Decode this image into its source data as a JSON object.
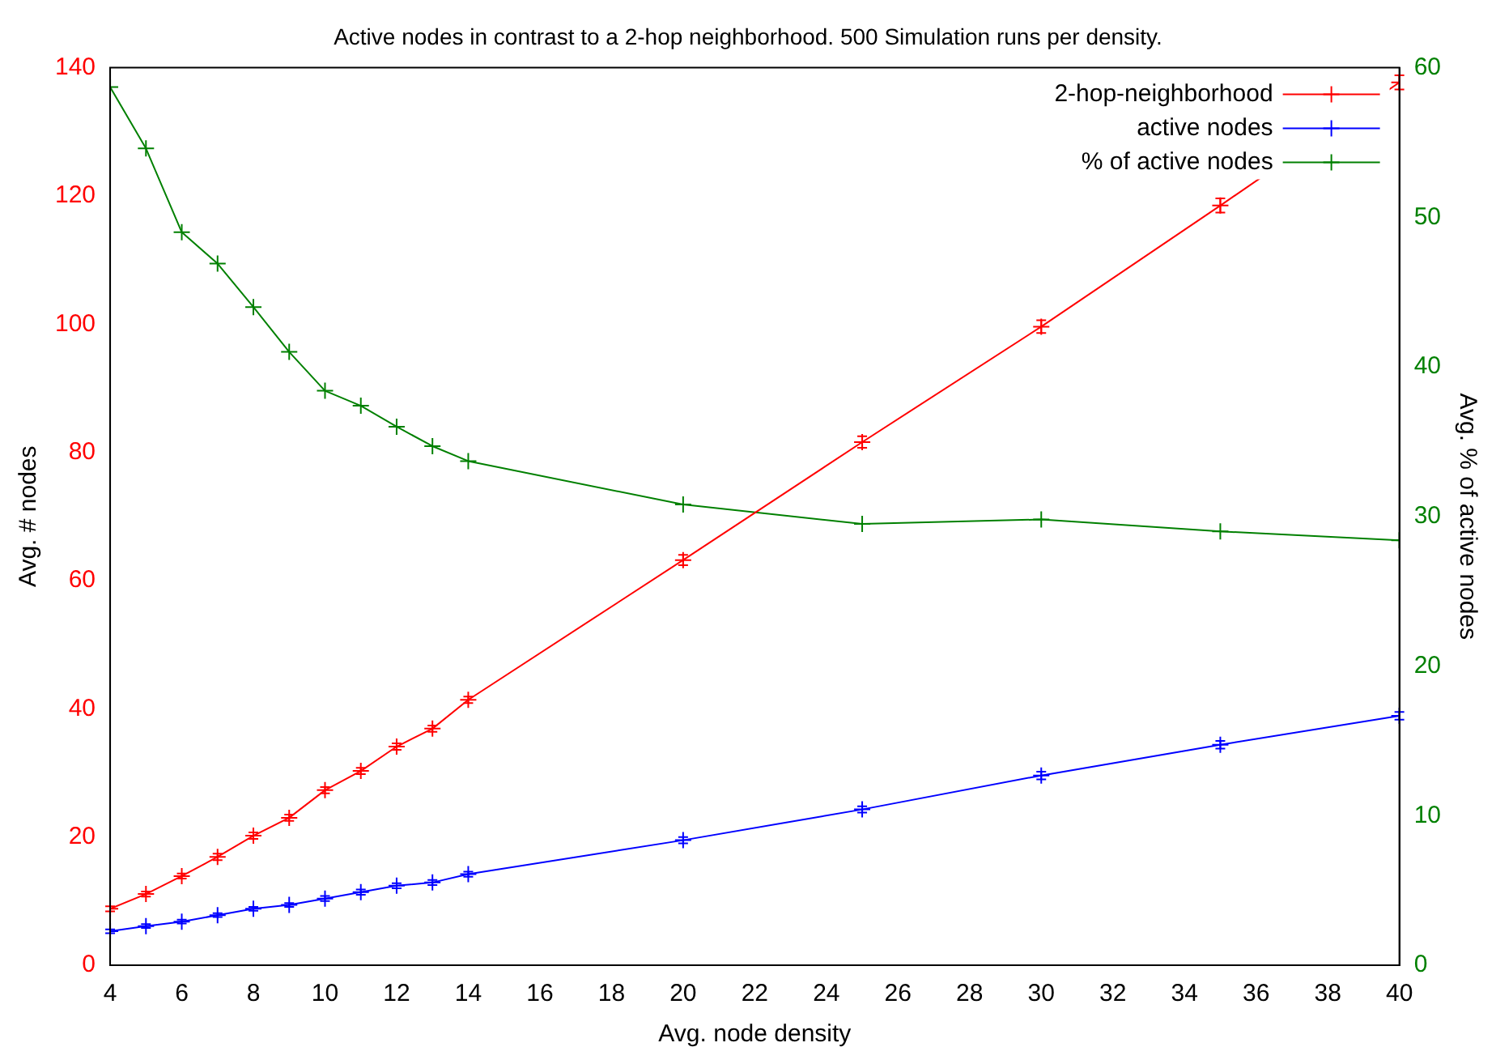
{
  "chart_data": {
    "type": "line",
    "title": "Active nodes in contrast to a 2-hop neighborhood. 500 Simulation runs per density.",
    "xlabel": "Avg. node density",
    "ylabel": "Avg. # nodes",
    "y2label": "Avg. % of active nodes",
    "x": [
      4,
      5,
      6,
      7,
      8,
      9,
      10,
      11,
      12,
      13,
      14,
      20,
      25,
      30,
      35,
      40
    ],
    "series": [
      {
        "name": "2-hop-neighborhood",
        "color": "#ff0000",
        "values": [
          8.8,
          11.1,
          13.9,
          16.9,
          20.2,
          23,
          27.3,
          30.3,
          34.1,
          36.9,
          41.4,
          63.2,
          81.6,
          99.6,
          118.5,
          137.7
        ],
        "errors": [
          0.4,
          0.4,
          0.4,
          0.5,
          0.5,
          0.5,
          0.5,
          0.5,
          0.5,
          0.5,
          0.5,
          0.8,
          0.9,
          1,
          1.1,
          1.1
        ]
      },
      {
        "name": "active nodes",
        "color": "#0000ff",
        "values": [
          5.3,
          6.1,
          6.8,
          7.8,
          8.8,
          9.4,
          10.4,
          11.4,
          12.4,
          12.9,
          14.2,
          19.5,
          24.3,
          29.6,
          34.4,
          38.9
        ],
        "errors": [
          0.3,
          0.3,
          0.3,
          0.3,
          0.3,
          0.3,
          0.4,
          0.4,
          0.4,
          0.4,
          0.4,
          0.5,
          0.5,
          0.6,
          0.6,
          0.6
        ]
      },
      {
        "name": "% of active nodes",
        "color": "#008000",
        "axis": "y2",
        "values": [
          58.7,
          54.6,
          49,
          46.9,
          44,
          41,
          38.4,
          37.4,
          36,
          34.7,
          33.7,
          30.8,
          29.5,
          29.8,
          29,
          28.4
        ]
      }
    ],
    "xlim": [
      4,
      40
    ],
    "xticks": [
      4,
      6,
      8,
      10,
      12,
      14,
      16,
      18,
      20,
      22,
      24,
      26,
      28,
      30,
      32,
      34,
      36,
      38,
      40
    ],
    "ylim": [
      0,
      140
    ],
    "yticks": [
      0,
      20,
      40,
      60,
      80,
      100,
      120,
      140
    ],
    "y2lim": [
      0,
      60
    ],
    "y2ticks": [
      0,
      10,
      20,
      30,
      40,
      50,
      60
    ],
    "legend": "top right",
    "marker": "cross",
    "line_style": "solid",
    "grid": false
  }
}
